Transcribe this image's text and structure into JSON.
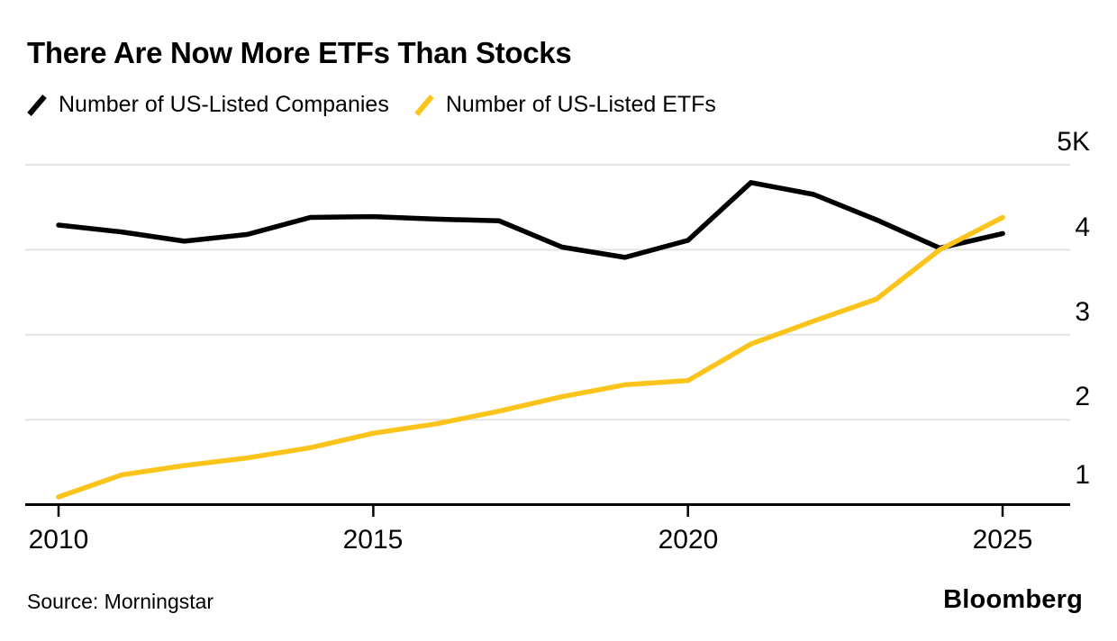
{
  "title": "There Are Now More ETFs Than Stocks",
  "legend": [
    {
      "label": "Number of US-Listed Companies",
      "color": "#000000"
    },
    {
      "label": "Number of US-Listed ETFs",
      "color": "#FBC41C"
    }
  ],
  "chart_data": {
    "type": "line",
    "title": "There Are Now More ETFs Than Stocks",
    "x": [
      2010,
      2011,
      2012,
      2013,
      2014,
      2015,
      2016,
      2017,
      2018,
      2019,
      2020,
      2021,
      2022,
      2023,
      2024,
      2025
    ],
    "series": [
      {
        "name": "Number of US-Listed Companies",
        "color": "#000000",
        "values": [
          4290,
          4210,
          4100,
          4180,
          4380,
          4390,
          4360,
          4340,
          4030,
          3910,
          4110,
          4790,
          4650,
          4350,
          4020,
          4190
        ]
      },
      {
        "name": "Number of US-Listed ETFs",
        "color": "#FBC41C",
        "values": [
          1090,
          1350,
          1460,
          1550,
          1670,
          1840,
          1950,
          2100,
          2270,
          2410,
          2460,
          2890,
          3160,
          3420,
          4000,
          4380
        ]
      }
    ],
    "xlabel": "",
    "ylabel": "",
    "xlim": [
      2010,
      2025
    ],
    "ylim": [
      1000,
      5000
    ],
    "y_ticks": [
      {
        "label": "5K",
        "value": 5000
      },
      {
        "label": "4",
        "value": 4000
      },
      {
        "label": "3",
        "value": 3000
      },
      {
        "label": "2",
        "value": 2000
      },
      {
        "label": "1",
        "value": 1000
      }
    ],
    "x_ticks": [
      {
        "label": "2010",
        "value": 2010
      },
      {
        "label": "2015",
        "value": 2015
      },
      {
        "label": "2020",
        "value": 2020
      },
      {
        "label": "2025",
        "value": 2025
      }
    ],
    "grid": "horizontal",
    "legend_position": "top-left"
  },
  "footer": {
    "source": "Source: Morningstar",
    "brand": "Bloomberg"
  },
  "colors": {
    "companies_line": "#000000",
    "etfs_line": "#FBC41C",
    "gridline": "#e3e3e3",
    "axis": "#000000",
    "background": "#ffffff"
  }
}
